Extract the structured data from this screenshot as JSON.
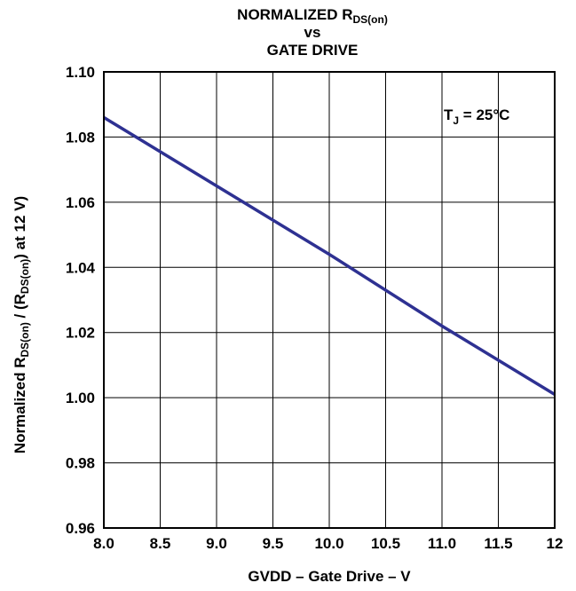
{
  "chart_data": {
    "type": "line",
    "title": {
      "line1_main": "NORMALIZED R",
      "line1_sub": "DS(on)",
      "line2": "vs",
      "line3": "GATE DRIVE"
    },
    "xlabel": "GVDD – Gate Drive – V",
    "ylabel": {
      "part1": "Normalized R",
      "sub1": "DS(on)",
      "part2": " / (R",
      "sub2": "DS(on)",
      "part3": ") at 12 V)"
    },
    "annotation": {
      "main": "T",
      "sub": "J",
      "rest": " = 25°C"
    },
    "x_ticks": [
      "8.0",
      "8.5",
      "9.0",
      "9.5",
      "10.0",
      "10.5",
      "11.0",
      "11.5",
      "12"
    ],
    "y_ticks": [
      "0.96",
      "0.98",
      "1.00",
      "1.02",
      "1.04",
      "1.06",
      "1.08",
      "1.10"
    ],
    "xlim": [
      8.0,
      12.0
    ],
    "ylim": [
      0.96,
      1.1
    ],
    "grid": true,
    "series": [
      {
        "color": "#2e3192",
        "x": [
          8.0,
          9.0,
          10.0,
          11.0,
          12.0
        ],
        "y": [
          1.086,
          1.065,
          1.044,
          1.022,
          1.001
        ]
      }
    ]
  }
}
